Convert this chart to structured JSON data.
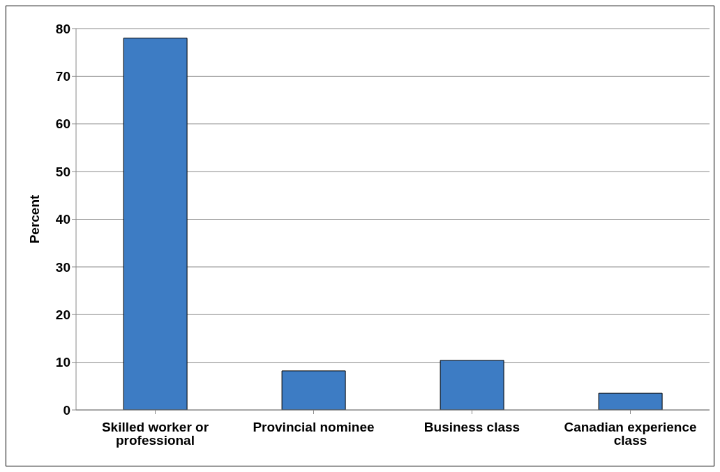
{
  "chart_data": {
    "type": "bar",
    "ylabel": "Percent",
    "categories": [
      "Skilled worker or professional",
      "Provincial nominee",
      "Business class",
      "Canadian experience class"
    ],
    "values": [
      78,
      8.2,
      10.4,
      3.5
    ],
    "color": "#3d7cc4",
    "ylim": [
      0,
      80
    ],
    "yticks": [
      0,
      10,
      20,
      30,
      40,
      50,
      60,
      70,
      80
    ],
    "grid": "y"
  }
}
